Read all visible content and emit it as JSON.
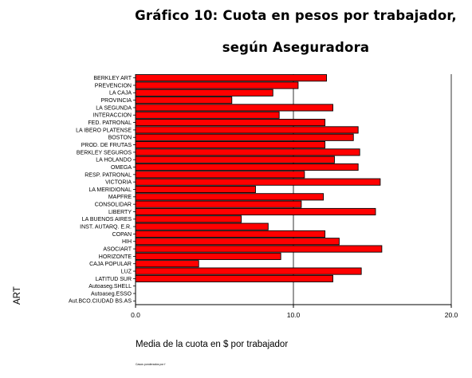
{
  "chart_data": {
    "type": "bar",
    "orientation": "horizontal",
    "title": "Gráfico 10: Cuota en pesos por trabajador,",
    "subtitle": "según Aseguradora",
    "xlabel": "Media de la cuota en $ por trabajador",
    "ylabel": "ART",
    "xlim": [
      0,
      20
    ],
    "x_ticks": [
      "0.0",
      "10.0",
      "20.0"
    ],
    "x_tick_values": [
      0,
      10,
      20
    ],
    "grid": true,
    "bar_color": "#ff0000",
    "footnote": "Casos ponderados por f",
    "categories": [
      "BERKLEY ART",
      "PREVENCION",
      "LA CAJA",
      "PROVINCIA",
      "LA SEGUNDA",
      "INTERACCION",
      "FED. PATRONAL",
      "LA IBERO PLATENSE",
      "BOSTON",
      "PROD. DE FRUTAS",
      "BERKLEY SEGUROS",
      "LA HOLANDO",
      "OMEGA",
      "RESP. PATRONAL",
      "VICTORIA",
      "LA MERIDIONAL",
      "MAPFRE",
      "CONSOLIDAR",
      "LIBERTY",
      "LA BUENOS AIRES",
      "INST. AUTARQ. E.R.",
      "COPAN",
      "HIH",
      "ASOCIART",
      "HORIZONTE",
      "CAJA POPULAR",
      "LUZ",
      "LATITUD SUR",
      "Autoaseg.SHELL",
      "Autoaseg.ESSO",
      "Aut.BCO.CIUDAD BS.AS"
    ],
    "values": [
      12.1,
      10.3,
      8.7,
      6.1,
      12.5,
      9.1,
      12.0,
      14.1,
      13.8,
      12.0,
      14.2,
      12.6,
      14.1,
      10.7,
      15.5,
      7.6,
      11.9,
      10.5,
      15.2,
      6.7,
      8.4,
      12.0,
      12.9,
      15.6,
      9.2,
      4.0,
      14.3,
      12.5,
      0,
      0,
      0
    ]
  }
}
